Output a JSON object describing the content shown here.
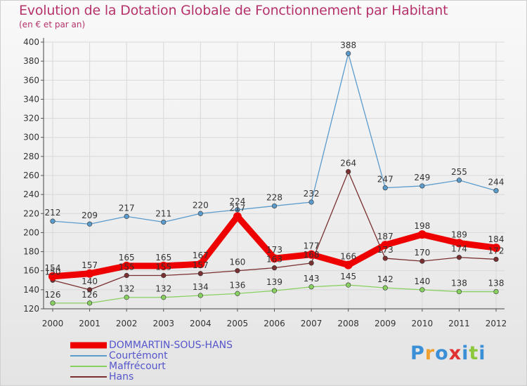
{
  "title": "Evolution de la Dotation Globale de Fonctionnement par Habitant",
  "subtitle": "(en € et par an)",
  "logo": {
    "text": "Proxiti",
    "colors": [
      "#3b8fd6",
      "#f0a030",
      "#3b8fd6",
      "#e03030",
      "#3b8fd6",
      "#8cc83c",
      "#3b8fd6"
    ]
  },
  "chart_data": {
    "type": "line",
    "title": "Evolution de la Dotation Globale de Fonctionnement par Habitant",
    "subtitle": "(en € et par an)",
    "x": [
      "2000",
      "2001",
      "2002",
      "2003",
      "2004",
      "2005",
      "2006",
      "2007",
      "2008",
      "2009",
      "2010",
      "2011",
      "2012"
    ],
    "ylim": [
      120,
      400
    ],
    "yticks": [
      "120",
      "140",
      "160",
      "180",
      "200",
      "220",
      "240",
      "260",
      "280",
      "300",
      "320",
      "340",
      "360",
      "380",
      "400"
    ],
    "grid": true,
    "legend_position": "bottom-left",
    "series": [
      {
        "name": "DOMMARTIN-SOUS-HANS",
        "color": "#ee0000",
        "emphasis": true,
        "values": [
          154,
          157,
          165,
          165,
          167,
          217,
          173,
          177,
          166,
          187,
          198,
          189,
          184
        ],
        "labels": [
          "154",
          "157",
          "165",
          "165",
          "167",
          "217",
          "173",
          "177",
          "166",
          "187",
          "198",
          "189",
          "184"
        ]
      },
      {
        "name": "Courtémont",
        "color": "#5b9bcc",
        "values": [
          212,
          209,
          217,
          211,
          220,
          224,
          228,
          232,
          388,
          247,
          249,
          255,
          244
        ],
        "labels": [
          "212",
          "209",
          "217",
          "211",
          "220",
          "224",
          "228",
          "232",
          "388",
          "247",
          "249",
          "255",
          "244"
        ]
      },
      {
        "name": "Maffrécourt",
        "color": "#88d060",
        "values": [
          126,
          126,
          132,
          132,
          134,
          136,
          139,
          143,
          145,
          142,
          140,
          138,
          138
        ],
        "labels": [
          "126",
          "126",
          "132",
          "132",
          "134",
          "136",
          "139",
          "143",
          "145",
          "142",
          "140",
          "138",
          "138"
        ]
      },
      {
        "name": "Hans",
        "color": "#7a3030",
        "values": [
          150,
          140,
          155,
          155,
          157,
          160,
          163,
          168,
          264,
          173,
          170,
          174,
          172
        ],
        "labels": [
          "150",
          "140",
          "155",
          "155",
          "157",
          "160",
          "163",
          "168",
          "264",
          "173",
          "170",
          "174",
          "172"
        ]
      }
    ]
  }
}
